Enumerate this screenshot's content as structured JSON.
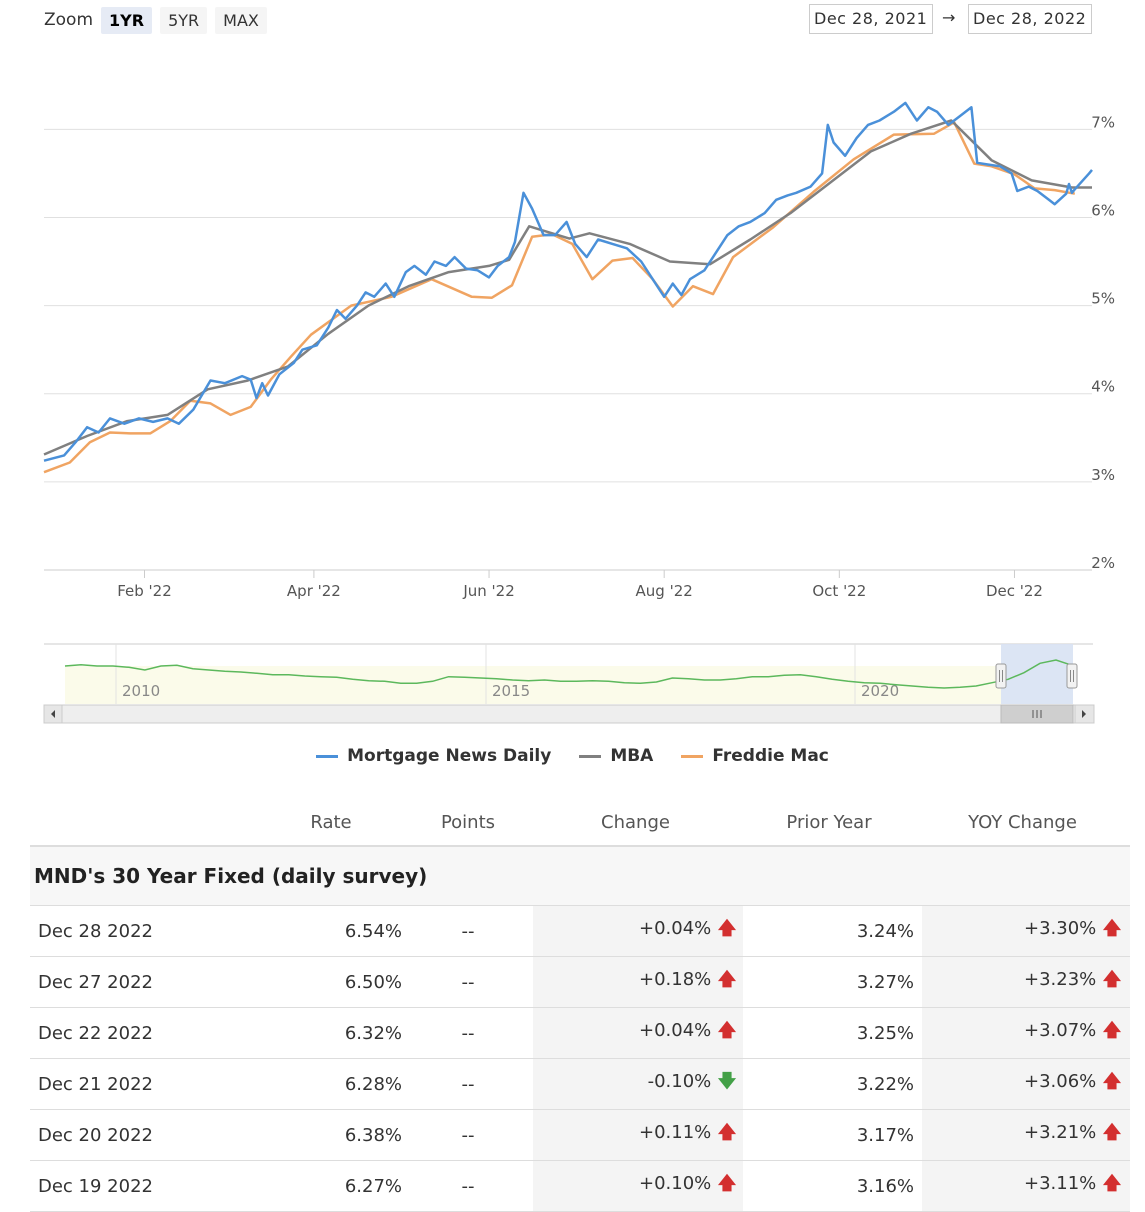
{
  "zoom": {
    "label": "Zoom",
    "buttons": [
      "1YR",
      "5YR",
      "MAX"
    ],
    "active": "1YR"
  },
  "range": {
    "from": "Dec 28, 2021",
    "arrow": "→",
    "to": "Dec 28, 2022"
  },
  "colors": {
    "mnd": "#4a90d9",
    "mba": "#808080",
    "freddie": "#f0a462",
    "navigator": "#5cb85c"
  },
  "chart_data": {
    "type": "line",
    "title": "",
    "xlabel": "",
    "ylabel": "",
    "x_range": [
      "2021-12-28",
      "2022-12-28"
    ],
    "ylim": [
      2,
      7.9
    ],
    "y_ticks": [
      2,
      3,
      4,
      5,
      6,
      7
    ],
    "y_tick_labels": [
      "2%",
      "3%",
      "4%",
      "5%",
      "6%",
      "7%"
    ],
    "x_ticks": [
      "2022-02-01",
      "2022-04-01",
      "2022-06-01",
      "2022-08-01",
      "2022-10-01",
      "2022-12-01"
    ],
    "x_tick_labels": [
      "Feb '22",
      "Apr '22",
      "Jun '22",
      "Aug '22",
      "Oct '22",
      "Dec '22"
    ],
    "grid": true,
    "legend_position": "bottom",
    "series": [
      {
        "name": "Mortgage News Daily",
        "color": "#4a90d9",
        "points": [
          [
            "2021-12-28",
            3.24
          ],
          [
            "2022-01-04",
            3.3
          ],
          [
            "2022-01-08",
            3.45
          ],
          [
            "2022-01-12",
            3.62
          ],
          [
            "2022-01-16",
            3.56
          ],
          [
            "2022-01-20",
            3.72
          ],
          [
            "2022-01-25",
            3.66
          ],
          [
            "2022-01-30",
            3.72
          ],
          [
            "2022-02-04",
            3.68
          ],
          [
            "2022-02-09",
            3.72
          ],
          [
            "2022-02-13",
            3.66
          ],
          [
            "2022-02-18",
            3.82
          ],
          [
            "2022-02-24",
            4.15
          ],
          [
            "2022-03-01",
            4.12
          ],
          [
            "2022-03-07",
            4.2
          ],
          [
            "2022-03-10",
            4.16
          ],
          [
            "2022-03-12",
            3.95
          ],
          [
            "2022-03-14",
            4.12
          ],
          [
            "2022-03-16",
            3.98
          ],
          [
            "2022-03-20",
            4.22
          ],
          [
            "2022-03-25",
            4.35
          ],
          [
            "2022-03-28",
            4.5
          ],
          [
            "2022-04-02",
            4.55
          ],
          [
            "2022-04-06",
            4.75
          ],
          [
            "2022-04-09",
            4.95
          ],
          [
            "2022-04-12",
            4.85
          ],
          [
            "2022-04-16",
            5.0
          ],
          [
            "2022-04-19",
            5.15
          ],
          [
            "2022-04-22",
            5.1
          ],
          [
            "2022-04-26",
            5.25
          ],
          [
            "2022-04-29",
            5.1
          ],
          [
            "2022-05-03",
            5.38
          ],
          [
            "2022-05-06",
            5.45
          ],
          [
            "2022-05-10",
            5.35
          ],
          [
            "2022-05-13",
            5.5
          ],
          [
            "2022-05-17",
            5.45
          ],
          [
            "2022-05-20",
            5.55
          ],
          [
            "2022-05-24",
            5.42
          ],
          [
            "2022-05-28",
            5.4
          ],
          [
            "2022-06-01",
            5.32
          ],
          [
            "2022-06-04",
            5.45
          ],
          [
            "2022-06-08",
            5.55
          ],
          [
            "2022-06-10",
            5.72
          ],
          [
            "2022-06-13",
            6.28
          ],
          [
            "2022-06-16",
            6.1
          ],
          [
            "2022-06-20",
            5.8
          ],
          [
            "2022-06-24",
            5.8
          ],
          [
            "2022-06-28",
            5.95
          ],
          [
            "2022-07-01",
            5.7
          ],
          [
            "2022-07-05",
            5.55
          ],
          [
            "2022-07-09",
            5.75
          ],
          [
            "2022-07-14",
            5.7
          ],
          [
            "2022-07-19",
            5.65
          ],
          [
            "2022-07-24",
            5.5
          ],
          [
            "2022-07-28",
            5.3
          ],
          [
            "2022-08-01",
            5.1
          ],
          [
            "2022-08-04",
            5.25
          ],
          [
            "2022-08-07",
            5.12
          ],
          [
            "2022-08-10",
            5.3
          ],
          [
            "2022-08-15",
            5.4
          ],
          [
            "2022-08-19",
            5.6
          ],
          [
            "2022-08-23",
            5.8
          ],
          [
            "2022-08-27",
            5.9
          ],
          [
            "2022-08-31",
            5.95
          ],
          [
            "2022-09-05",
            6.05
          ],
          [
            "2022-09-09",
            6.2
          ],
          [
            "2022-09-13",
            6.25
          ],
          [
            "2022-09-16",
            6.28
          ],
          [
            "2022-09-21",
            6.35
          ],
          [
            "2022-09-25",
            6.5
          ],
          [
            "2022-09-27",
            7.05
          ],
          [
            "2022-09-29",
            6.85
          ],
          [
            "2022-10-03",
            6.7
          ],
          [
            "2022-10-07",
            6.9
          ],
          [
            "2022-10-11",
            7.05
          ],
          [
            "2022-10-15",
            7.1
          ],
          [
            "2022-10-20",
            7.2
          ],
          [
            "2022-10-24",
            7.3
          ],
          [
            "2022-10-28",
            7.1
          ],
          [
            "2022-11-01",
            7.25
          ],
          [
            "2022-11-04",
            7.2
          ],
          [
            "2022-11-08",
            7.05
          ],
          [
            "2022-11-12",
            7.15
          ],
          [
            "2022-11-16",
            7.25
          ],
          [
            "2022-11-18",
            6.62
          ],
          [
            "2022-11-22",
            6.6
          ],
          [
            "2022-11-26",
            6.58
          ],
          [
            "2022-11-30",
            6.5
          ],
          [
            "2022-12-02",
            6.3
          ],
          [
            "2022-12-06",
            6.35
          ],
          [
            "2022-12-09",
            6.3
          ],
          [
            "2022-12-13",
            6.2
          ],
          [
            "2022-12-15",
            6.15
          ],
          [
            "2022-12-19",
            6.27
          ],
          [
            "2022-12-20",
            6.38
          ],
          [
            "2022-12-21",
            6.28
          ],
          [
            "2022-12-22",
            6.32
          ],
          [
            "2022-12-27",
            6.5
          ],
          [
            "2022-12-28",
            6.54
          ]
        ]
      },
      {
        "name": "MBA",
        "color": "#808080",
        "points": [
          [
            "2021-12-28",
            3.31
          ],
          [
            "2022-01-12",
            3.52
          ],
          [
            "2022-01-26",
            3.69
          ],
          [
            "2022-02-09",
            3.76
          ],
          [
            "2022-02-23",
            4.05
          ],
          [
            "2022-03-09",
            4.15
          ],
          [
            "2022-03-23",
            4.31
          ],
          [
            "2022-04-06",
            4.68
          ],
          [
            "2022-04-20",
            5.0
          ],
          [
            "2022-05-04",
            5.22
          ],
          [
            "2022-05-18",
            5.38
          ],
          [
            "2022-06-01",
            5.45
          ],
          [
            "2022-06-08",
            5.52
          ],
          [
            "2022-06-15",
            5.9
          ],
          [
            "2022-06-22",
            5.83
          ],
          [
            "2022-06-29",
            5.76
          ],
          [
            "2022-07-06",
            5.82
          ],
          [
            "2022-07-20",
            5.7
          ],
          [
            "2022-08-03",
            5.5
          ],
          [
            "2022-08-17",
            5.47
          ],
          [
            "2022-08-31",
            5.75
          ],
          [
            "2022-09-14",
            6.05
          ],
          [
            "2022-09-28",
            6.4
          ],
          [
            "2022-10-12",
            6.75
          ],
          [
            "2022-10-26",
            6.95
          ],
          [
            "2022-11-09",
            7.1
          ],
          [
            "2022-11-23",
            6.65
          ],
          [
            "2022-12-07",
            6.42
          ],
          [
            "2022-12-21",
            6.34
          ],
          [
            "2022-12-28",
            6.34
          ]
        ]
      },
      {
        "name": "Freddie Mac",
        "color": "#f0a462",
        "points": [
          [
            "2021-12-28",
            3.11
          ],
          [
            "2022-01-06",
            3.22
          ],
          [
            "2022-01-13",
            3.45
          ],
          [
            "2022-01-20",
            3.56
          ],
          [
            "2022-01-27",
            3.55
          ],
          [
            "2022-02-03",
            3.55
          ],
          [
            "2022-02-10",
            3.69
          ],
          [
            "2022-02-17",
            3.92
          ],
          [
            "2022-02-24",
            3.89
          ],
          [
            "2022-03-03",
            3.76
          ],
          [
            "2022-03-10",
            3.85
          ],
          [
            "2022-03-17",
            4.16
          ],
          [
            "2022-03-24",
            4.42
          ],
          [
            "2022-03-31",
            4.67
          ],
          [
            "2022-04-14",
            5.0
          ],
          [
            "2022-04-28",
            5.1
          ],
          [
            "2022-05-12",
            5.3
          ],
          [
            "2022-05-26",
            5.1
          ],
          [
            "2022-06-02",
            5.09
          ],
          [
            "2022-06-09",
            5.23
          ],
          [
            "2022-06-16",
            5.78
          ],
          [
            "2022-06-23",
            5.81
          ],
          [
            "2022-06-30",
            5.7
          ],
          [
            "2022-07-07",
            5.3
          ],
          [
            "2022-07-14",
            5.51
          ],
          [
            "2022-07-21",
            5.54
          ],
          [
            "2022-07-28",
            5.3
          ],
          [
            "2022-08-04",
            4.99
          ],
          [
            "2022-08-11",
            5.22
          ],
          [
            "2022-08-18",
            5.13
          ],
          [
            "2022-08-25",
            5.55
          ],
          [
            "2022-09-08",
            5.89
          ],
          [
            "2022-09-22",
            6.29
          ],
          [
            "2022-10-06",
            6.66
          ],
          [
            "2022-10-20",
            6.94
          ],
          [
            "2022-11-03",
            6.95
          ],
          [
            "2022-11-10",
            7.08
          ],
          [
            "2022-11-17",
            6.61
          ],
          [
            "2022-11-23",
            6.58
          ],
          [
            "2022-12-01",
            6.49
          ],
          [
            "2022-12-08",
            6.33
          ],
          [
            "2022-12-15",
            6.31
          ],
          [
            "2022-12-22",
            6.27
          ]
        ]
      }
    ]
  },
  "navigator": {
    "labels": [
      "2010",
      "2015",
      "2020"
    ],
    "values": [
      6.2,
      6.4,
      6.2,
      6.2,
      6.0,
      5.6,
      6.2,
      6.3,
      5.8,
      5.6,
      5.4,
      5.3,
      5.1,
      4.9,
      4.9,
      4.7,
      4.6,
      4.5,
      4.2,
      4.0,
      3.9,
      3.6,
      3.6,
      3.9,
      4.6,
      4.5,
      4.4,
      4.3,
      4.1,
      4.0,
      4.1,
      3.9,
      3.9,
      4.0,
      3.9,
      3.7,
      3.6,
      3.8,
      4.4,
      4.3,
      4.1,
      4.1,
      4.3,
      4.6,
      4.6,
      4.8,
      4.9,
      4.6,
      4.2,
      3.9,
      3.7,
      3.6,
      3.4,
      3.2,
      3.0,
      2.9,
      3.0,
      3.2,
      3.7,
      4.2,
      5.2,
      6.6,
      7.1,
      6.3
    ]
  },
  "legend": [
    "Mortgage News Daily",
    "MBA",
    "Freddie Mac"
  ],
  "table": {
    "headers": [
      "Rate",
      "Points",
      "Change",
      "Prior Year",
      "YOY Change"
    ],
    "section": "MND's 30 Year Fixed (daily survey)",
    "rows": [
      {
        "date": "Dec 28 2022",
        "rate": "6.54%",
        "points": "--",
        "change": "+0.04%",
        "change_dir": "up",
        "prior": "3.24%",
        "yoy": "+3.30%",
        "yoy_dir": "up"
      },
      {
        "date": "Dec 27 2022",
        "rate": "6.50%",
        "points": "--",
        "change": "+0.18%",
        "change_dir": "up",
        "prior": "3.27%",
        "yoy": "+3.23%",
        "yoy_dir": "up"
      },
      {
        "date": "Dec 22 2022",
        "rate": "6.32%",
        "points": "--",
        "change": "+0.04%",
        "change_dir": "up",
        "prior": "3.25%",
        "yoy": "+3.07%",
        "yoy_dir": "up"
      },
      {
        "date": "Dec 21 2022",
        "rate": "6.28%",
        "points": "--",
        "change": "-0.10%",
        "change_dir": "down",
        "prior": "3.22%",
        "yoy": "+3.06%",
        "yoy_dir": "up"
      },
      {
        "date": "Dec 20 2022",
        "rate": "6.38%",
        "points": "--",
        "change": "+0.11%",
        "change_dir": "up",
        "prior": "3.17%",
        "yoy": "+3.21%",
        "yoy_dir": "up"
      },
      {
        "date": "Dec 19 2022",
        "rate": "6.27%",
        "points": "--",
        "change": "+0.10%",
        "change_dir": "up",
        "prior": "3.16%",
        "yoy": "+3.11%",
        "yoy_dir": "up"
      }
    ]
  }
}
